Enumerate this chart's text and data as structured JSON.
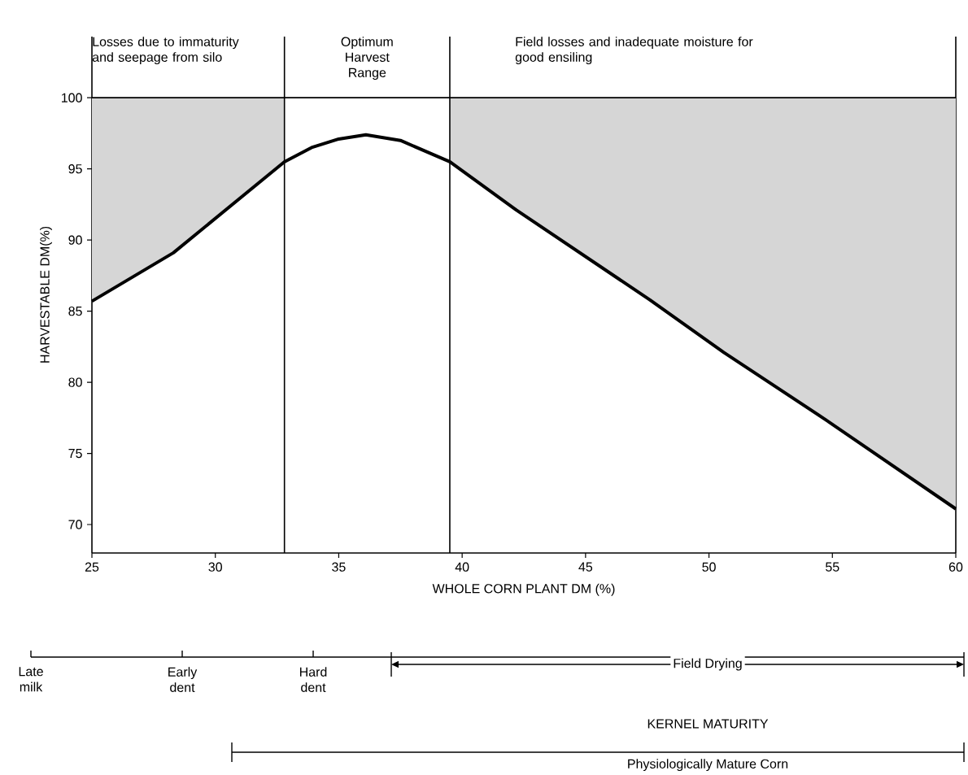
{
  "chart_data": {
    "type": "line",
    "xlabel": "WHOLE CORN PLANT DM (%)",
    "ylabel": "HARVESTABLE DM(%)",
    "x": [
      25,
      28.3,
      32.8,
      33.9,
      35,
      36.1,
      37.5,
      39.5,
      42.2,
      47.6,
      50.6,
      54.7,
      60
    ],
    "series": [
      {
        "color": "#000000",
        "values": [
          85.7,
          89.1,
          95.5,
          96.5,
          97.1,
          97.4,
          97.0,
          95.5,
          92.1,
          85.8,
          82.1,
          77.4,
          71.1
        ],
        "lower": [
          85.7,
          89.1,
          95.5,
          null,
          null,
          null,
          null,
          95.5,
          92.1,
          85.8,
          82.1,
          77.4,
          71.1
        ],
        "upper": [
          100,
          100,
          100,
          null,
          null,
          null,
          null,
          100,
          100,
          100,
          100,
          100,
          100
        ]
      }
    ],
    "xlim": [
      25,
      60
    ],
    "ylim": [
      68,
      104.3
    ],
    "xticks": [
      25,
      30,
      35,
      40,
      45,
      50,
      55,
      60
    ],
    "yticks": [
      70,
      75,
      80,
      85,
      90,
      95,
      100
    ],
    "ref_lines": [
      {
        "axis": "x",
        "value": 32.8
      },
      {
        "axis": "x",
        "value": 39.5
      },
      {
        "axis": "y",
        "value": 100
      }
    ],
    "line_style": "solid",
    "annotations": [
      "Losses due to immaturity and seepage from silo",
      "Optimum Harvest Range",
      "Field losses and inadequate moisture for good ensiling",
      "Late milk",
      "Early dent",
      "Hard dent",
      "Field Drying",
      "KERNEL MATURITY",
      "Physiologically Mature Corn"
    ]
  }
}
